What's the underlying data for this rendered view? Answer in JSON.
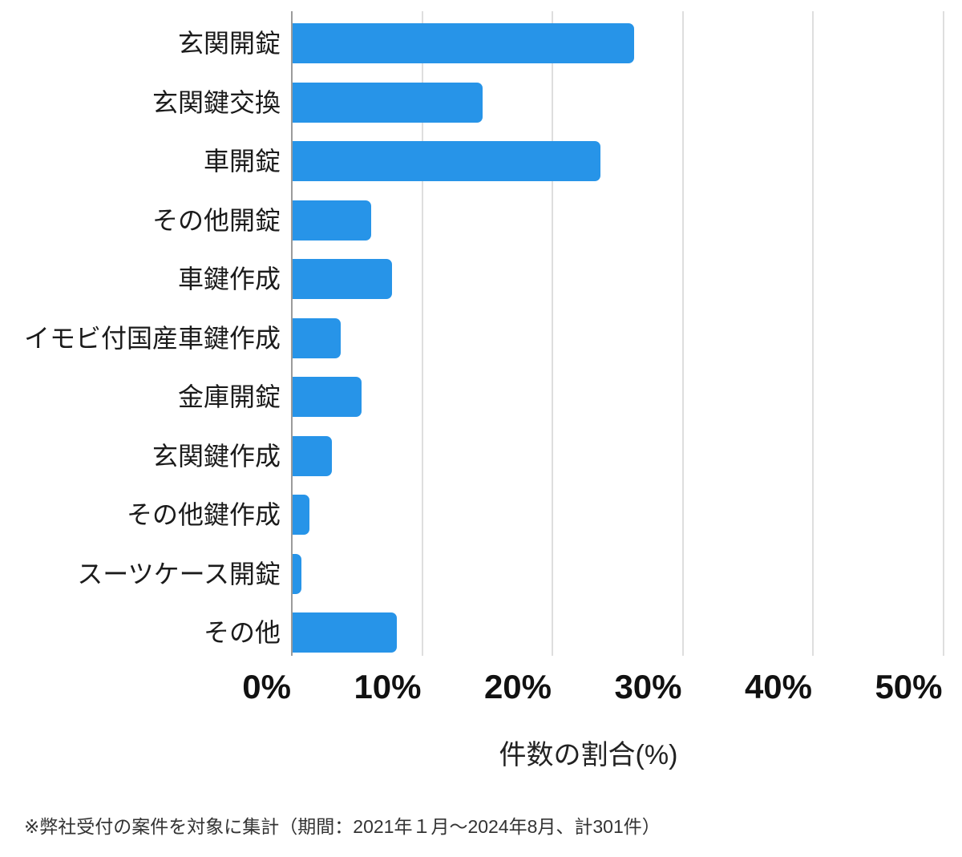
{
  "chart_data": {
    "type": "bar",
    "orientation": "horizontal",
    "title": "",
    "categories": [
      "玄関開錠",
      "玄関鍵交換",
      "車開錠",
      "その他開錠",
      "車鍵作成",
      "イモビ付国産車鍵作成",
      "金庫開錠",
      "玄関鍵作成",
      "その他鍵作成",
      "スーツケース開錠",
      "その他"
    ],
    "values": [
      26.2,
      14.6,
      23.6,
      6.0,
      7.6,
      3.7,
      5.3,
      3.0,
      1.3,
      0.7,
      8.0
    ],
    "unit": "%",
    "xlabel": "件数の割合(%)",
    "x_ticks": [
      "0%",
      "10%",
      "20%",
      "30%",
      "40%",
      "50%"
    ],
    "x_tick_values": [
      0,
      10,
      20,
      30,
      40,
      50
    ],
    "xlim": [
      0,
      50
    ],
    "grid": "vertical-gridlines-on",
    "legend": "none",
    "bar_color": "#2794e8"
  },
  "footnote": "※弊社受付の案件を対象に集計（期間：2021年１月～2024年8月、計301件）"
}
